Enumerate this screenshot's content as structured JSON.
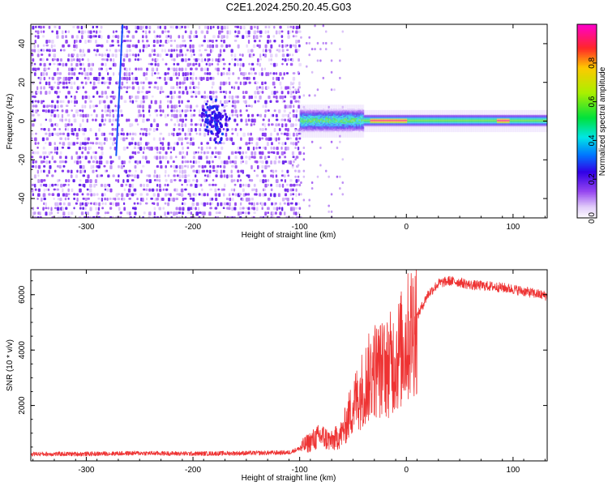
{
  "chart_data": [
    {
      "type": "heatmap",
      "title": "C2E1.2024.250.20.45.G03",
      "xlabel": "Height of straight line (km)",
      "ylabel": "Frequency (Hz)",
      "xlim": [
        -352,
        132
      ],
      "ylim": [
        -50,
        50
      ],
      "x_ticks": [
        "-300",
        "-200",
        "-100",
        "0",
        "100"
      ],
      "y_ticks": [
        "-40",
        "-20",
        "0",
        "20",
        "40"
      ],
      "colorbar": {
        "label": "Normalized spectral amplitude",
        "ticks": [
          "0.0",
          "0.2",
          "0.4",
          "0.6",
          "0.8"
        ],
        "range": [
          0,
          1
        ]
      },
      "features": [
        {
          "name": "noise region",
          "x_range": [
            -352,
            -100
          ],
          "y_range": [
            -50,
            50
          ],
          "amplitude": 0.12
        },
        {
          "name": "vertical streak",
          "x": -270,
          "y_range": [
            -18,
            50
          ],
          "amplitude": 0.2
        },
        {
          "name": "blob",
          "x": -180,
          "y": 0,
          "amplitude": 0.2
        },
        {
          "name": "signal band",
          "x_range": [
            -100,
            132
          ],
          "y": 0,
          "amplitude": 0.6
        },
        {
          "name": "peak",
          "x_range": [
            -35,
            0
          ],
          "y": 0,
          "amplitude": 0.95
        },
        {
          "name": "peak",
          "x": 90,
          "y": 1,
          "amplitude": 0.97
        }
      ]
    },
    {
      "type": "line",
      "xlabel": "Height of straight line (km)",
      "ylabel": "SNR (10 * v/v)",
      "xlim": [
        -352,
        132
      ],
      "ylim": [
        0,
        6900
      ],
      "x_ticks": [
        "-300",
        "-200",
        "-100",
        "0",
        "100"
      ],
      "y_ticks": [
        "2000",
        "4000",
        "6000"
      ],
      "color": "#ee3333",
      "series": [
        {
          "x": [
            -352,
            -300,
            -250,
            -200,
            -150,
            -110,
            -100,
            -90,
            -80,
            -70,
            -60,
            -50,
            -40,
            -30,
            -20,
            -10,
            0,
            10,
            20,
            30,
            40,
            50,
            60,
            80,
            100,
            132
          ],
          "values": [
            250,
            250,
            280,
            260,
            280,
            300,
            450,
            700,
            900,
            700,
            1000,
            2000,
            2700,
            3300,
            3300,
            3700,
            4300,
            5200,
            6000,
            6400,
            6500,
            6450,
            6350,
            6300,
            6200,
            5950
          ]
        }
      ]
    }
  ]
}
